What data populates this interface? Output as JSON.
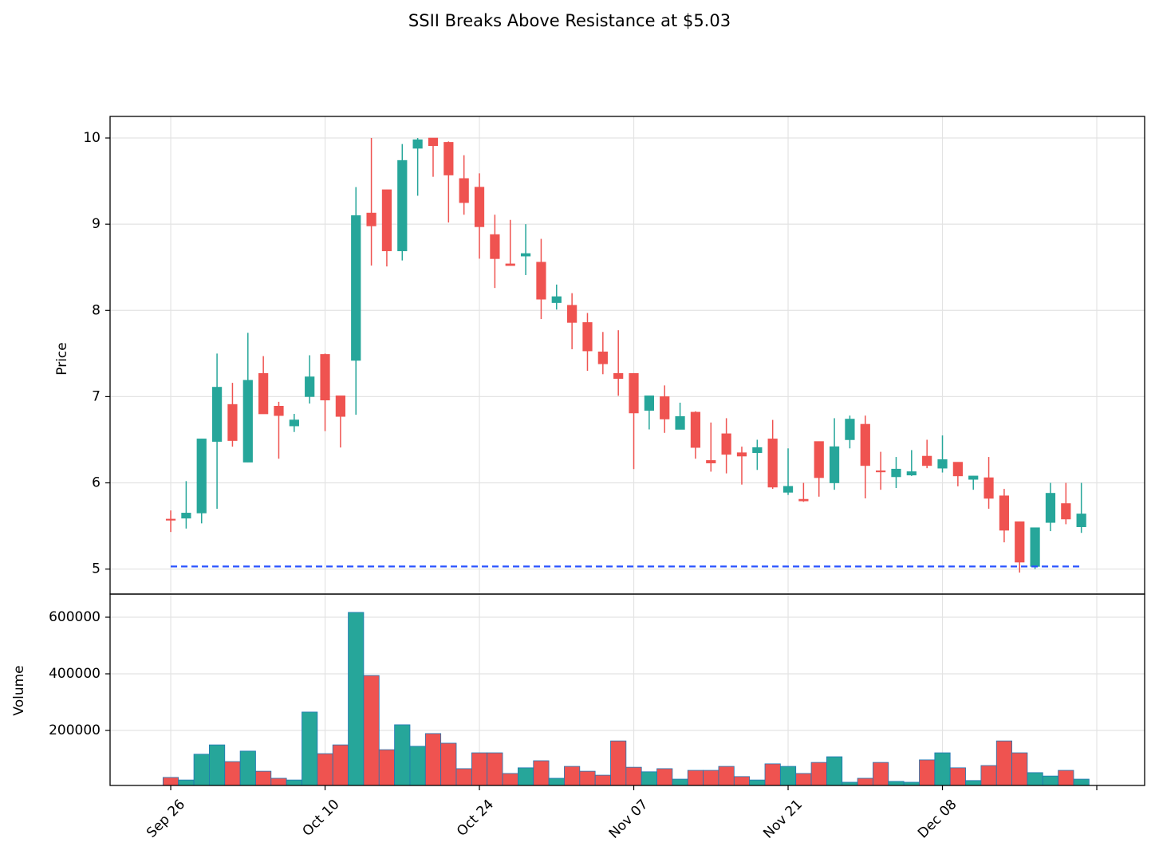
{
  "chart_data": {
    "type": "candlestick",
    "title": "SSII Breaks Above Resistance at $5.03",
    "ylabel": "Price",
    "volume_ylabel": "Volume",
    "up_color": "#26a69a",
    "down_color": "#ef5350",
    "volume_edge_color": "#1f77b4",
    "resistance": 5.03,
    "resistance_color": "#2952ff",
    "open": [
      5.58,
      5.59,
      5.65,
      6.48,
      6.91,
      6.24,
      7.27,
      6.89,
      6.66,
      7.0,
      7.49,
      7.01,
      7.42,
      9.13,
      9.4,
      8.69,
      9.88,
      10.0,
      9.95,
      9.53,
      9.43,
      8.88,
      8.54,
      8.63,
      8.56,
      8.09,
      8.06,
      7.86,
      7.52,
      7.27,
      7.27,
      6.84,
      7.0,
      6.62,
      6.82,
      6.26,
      6.57,
      6.35,
      6.35,
      6.51,
      5.89,
      5.81,
      6.48,
      6.0,
      6.5,
      6.68,
      6.14,
      6.07,
      6.09,
      6.31,
      6.17,
      6.24,
      6.04,
      6.06,
      5.85,
      5.55,
      5.03,
      5.54,
      5.76,
      5.49
    ],
    "high": [
      5.68,
      6.02,
      6.51,
      7.5,
      7.16,
      7.74,
      7.47,
      6.94,
      6.8,
      7.48,
      7.5,
      7.01,
      9.43,
      10.0,
      9.4,
      9.93,
      10.0,
      10.0,
      9.96,
      9.8,
      9.59,
      9.11,
      9.05,
      9.0,
      8.83,
      8.3,
      8.2,
      7.97,
      7.75,
      7.77,
      7.27,
      7.01,
      7.13,
      6.93,
      6.83,
      6.7,
      6.75,
      6.42,
      6.5,
      6.73,
      6.4,
      6.0,
      6.48,
      6.75,
      6.78,
      6.78,
      6.36,
      6.3,
      6.38,
      6.5,
      6.55,
      6.24,
      6.08,
      6.3,
      5.93,
      5.55,
      5.48,
      6.0,
      6.0,
      6.0
    ],
    "low": [
      5.43,
      5.47,
      5.53,
      5.7,
      6.42,
      6.24,
      6.8,
      6.28,
      6.59,
      6.92,
      6.6,
      6.41,
      6.79,
      8.52,
      8.51,
      8.58,
      9.33,
      9.55,
      9.02,
      9.11,
      8.6,
      8.26,
      8.52,
      8.41,
      7.9,
      8.01,
      7.55,
      7.3,
      7.26,
      7.01,
      6.16,
      6.62,
      6.58,
      6.62,
      6.28,
      6.13,
      6.11,
      5.98,
      6.15,
      5.93,
      5.86,
      5.78,
      5.84,
      5.92,
      6.4,
      5.82,
      5.92,
      5.94,
      6.08,
      6.17,
      6.12,
      5.96,
      5.92,
      5.7,
      5.31,
      4.96,
      5.0,
      5.44,
      5.52,
      5.42
    ],
    "close": [
      5.57,
      5.65,
      6.51,
      7.11,
      6.49,
      7.19,
      6.8,
      6.78,
      6.73,
      7.23,
      6.96,
      6.77,
      9.1,
      8.98,
      8.69,
      9.74,
      9.98,
      9.91,
      9.57,
      9.25,
      8.97,
      8.6,
      8.52,
      8.66,
      8.13,
      8.16,
      7.86,
      7.53,
      7.38,
      7.21,
      6.81,
      7.01,
      6.74,
      6.77,
      6.41,
      6.23,
      6.33,
      6.31,
      6.41,
      5.95,
      5.96,
      5.79,
      6.06,
      6.42,
      6.74,
      6.2,
      6.13,
      6.16,
      6.13,
      6.2,
      6.27,
      6.08,
      6.08,
      5.82,
      5.45,
      5.08,
      5.48,
      5.88,
      5.58,
      5.64
    ],
    "volume": [
      34000,
      25000,
      116000,
      149000,
      90000,
      127000,
      56000,
      31000,
      25000,
      265000,
      118000,
      149000,
      617000,
      394000,
      132000,
      220000,
      144000,
      189000,
      155000,
      65000,
      121000,
      121000,
      48000,
      68000,
      93000,
      31000,
      73000,
      56000,
      42000,
      163000,
      70000,
      54000,
      65000,
      28000,
      59000,
      59000,
      73000,
      37000,
      25000,
      82000,
      73000,
      48000,
      87000,
      107000,
      17000,
      31000,
      87000,
      20000,
      17000,
      96000,
      121000,
      68000,
      23000,
      76000,
      163000,
      121000,
      51000,
      39000,
      59000,
      28000
    ],
    "xlim": [
      -3.93,
      63.1
    ],
    "xticks": [
      {
        "value": 0,
        "label": "Sep 26"
      },
      {
        "value": 10,
        "label": "Oct 10"
      },
      {
        "value": 20,
        "label": "Oct 24"
      },
      {
        "value": 30,
        "label": "Nov 07"
      },
      {
        "value": 40,
        "label": "Nov 21"
      },
      {
        "value": 50,
        "label": "Dec 08"
      },
      {
        "value": 60,
        "label": null
      }
    ],
    "ylim": [
      4.71,
      10.25
    ],
    "yticks": [
      5,
      6,
      7,
      8,
      9,
      10
    ],
    "volume_ylim": [
      5600,
      681700
    ],
    "volume_yticks": [
      200000,
      400000,
      600000
    ],
    "grid": true
  }
}
